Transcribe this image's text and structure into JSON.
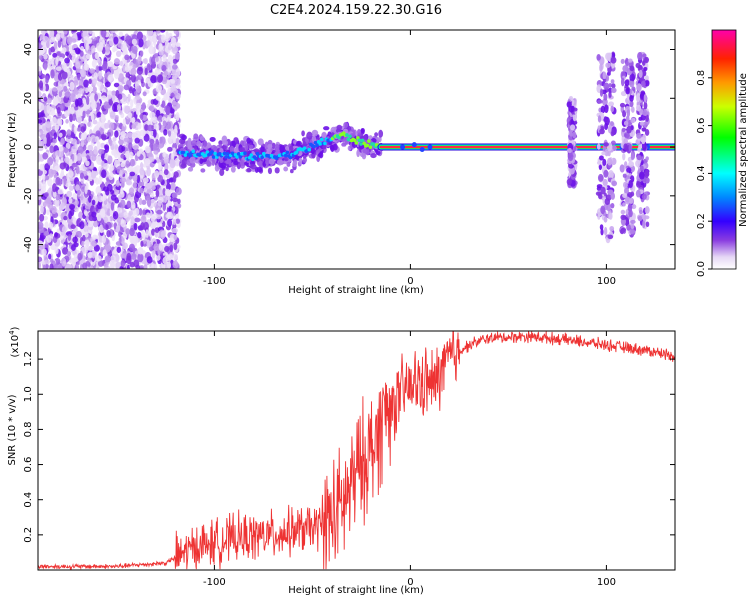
{
  "title": "C2E4.2024.159.22.30.G16",
  "chart_data": [
    {
      "type": "heatmap",
      "xlabel": "Height of straight line (km)",
      "ylabel": "Frequency (Hz)",
      "xlim": [
        -190,
        135
      ],
      "ylim": [
        -50,
        48
      ],
      "xticks": [
        -100,
        0,
        100
      ],
      "yticks": [
        -40,
        -20,
        0,
        20,
        40
      ],
      "colorbar": {
        "label": "Normalized spectral amplitude",
        "ticks": [
          "0.0",
          "0.2",
          "0.4",
          "0.6",
          "0.8"
        ],
        "range": [
          0,
          1
        ]
      },
      "features": {
        "broadband_noise_x": [
          -190,
          -118
        ],
        "carrier_line": {
          "x": [
            -120,
            135
          ],
          "frequency": 0
        },
        "carrier_trace": [
          [
            -118,
            -2
          ],
          [
            -100,
            -3
          ],
          [
            -80,
            -4
          ],
          [
            -60,
            -3
          ],
          [
            -45,
            2
          ],
          [
            -35,
            5
          ],
          [
            -25,
            2
          ],
          [
            -15,
            0
          ]
        ],
        "lines_strong_from_x": 10,
        "scatter_clusters": [
          {
            "x": [
              96,
              104
            ],
            "f": [
              -38,
              38
            ]
          },
          {
            "x": [
              108,
              114
            ],
            "f": [
              -36,
              36
            ]
          },
          {
            "x": [
              116,
              121
            ],
            "f": [
              -32,
              38
            ]
          },
          {
            "x": [
              81,
              84
            ],
            "f": [
              -16,
              20
            ]
          }
        ]
      }
    },
    {
      "type": "line",
      "xlabel": "Height of straight line (km)",
      "ylabel": "SNR (10 * v/v)",
      "y_multiplier": "(x10",
      "y_multiplier_exp": "4",
      "y_multiplier_close": ")",
      "xlim": [
        -190,
        135
      ],
      "ylim": [
        0,
        1.36
      ],
      "xticks": [
        -100,
        0,
        100
      ],
      "yticks": [
        "0.2",
        "0.4",
        "0.6",
        "0.8",
        "1.0",
        "1.2"
      ],
      "color": "#ee3333",
      "envelope": [
        [
          -190,
          0.02
        ],
        [
          -150,
          0.02
        ],
        [
          -125,
          0.04
        ],
        [
          -110,
          0.13
        ],
        [
          -90,
          0.18
        ],
        [
          -70,
          0.2
        ],
        [
          -55,
          0.23
        ],
        [
          -45,
          0.25
        ],
        [
          -35,
          0.35
        ],
        [
          -28,
          0.53
        ],
        [
          -22,
          0.66
        ],
        [
          -18,
          0.72
        ],
        [
          -13,
          0.9
        ],
        [
          -8,
          0.95
        ],
        [
          -3,
          1.02
        ],
        [
          5,
          1.07
        ],
        [
          12,
          1.05
        ],
        [
          18,
          1.18
        ],
        [
          25,
          1.25
        ],
        [
          32,
          1.29
        ],
        [
          40,
          1.32
        ],
        [
          60,
          1.33
        ],
        [
          80,
          1.31
        ],
        [
          100,
          1.28
        ],
        [
          120,
          1.25
        ],
        [
          135,
          1.22
        ]
      ]
    }
  ]
}
